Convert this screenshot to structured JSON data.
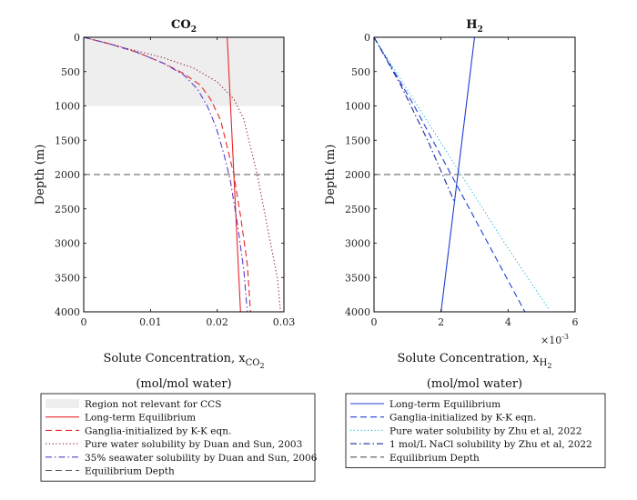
{
  "chart_data": [
    {
      "type": "line",
      "title": "CO",
      "title_sub": "2",
      "xlabel": "Solute Concentration, x",
      "xlabel_sub": "CO",
      "xlabel_subsub": "2",
      "units": "(mol/mol water)",
      "ylabel": "Depth (m)",
      "xlim": [
        0,
        0.03
      ],
      "ylim": [
        0,
        4000
      ],
      "xticks": [
        "0",
        "0.01",
        "0.02",
        "0.03"
      ],
      "xtick_values": [
        0,
        0.01,
        0.02,
        0.03
      ],
      "yticks": [
        "0",
        "500",
        "1000",
        "1500",
        "2000",
        "2500",
        "3000",
        "3500",
        "4000"
      ],
      "ytick_values": [
        0,
        500,
        1000,
        1500,
        2000,
        2500,
        3000,
        3500,
        4000
      ],
      "shaded_region": {
        "label": "Region not relevant for CCS",
        "y": [
          0,
          1000
        ],
        "color": "#eeeeee"
      },
      "equilibrium_depth": 2000,
      "series": [
        {
          "name": "Long-term Equilibrium",
          "color": "#e8262b",
          "dash": "solid",
          "x": [
            0.0215,
            0.0235
          ],
          "y": [
            0,
            4000
          ]
        },
        {
          "name": "Ganglia-initialized by K-K eqn.",
          "color": "#e8262b",
          "dash": "dashed",
          "x": [
            0,
            0.004,
            0.008,
            0.012,
            0.015,
            0.0175,
            0.019,
            0.0205,
            0.0215,
            0.0225,
            0.0235,
            0.0245,
            0.025
          ],
          "y": [
            0,
            100,
            220,
            380,
            530,
            700,
            900,
            1200,
            1600,
            2000,
            2600,
            3300,
            4000
          ]
        },
        {
          "name": "Pure water solubility by Duan and Sun, 2003",
          "color": "#8b1a2e",
          "dash": "dotted",
          "x": [
            0,
            0.006,
            0.012,
            0.0165,
            0.02,
            0.0225,
            0.024,
            0.025,
            0.026,
            0.027,
            0.028,
            0.029,
            0.0295
          ],
          "y": [
            0,
            150,
            300,
            450,
            650,
            900,
            1200,
            1600,
            2000,
            2500,
            3000,
            3500,
            4000
          ]
        },
        {
          "name": "35% seawater solubility by Duan and Sun, 2006",
          "color": "#5a3cc8",
          "dash": "dashdot",
          "x": [
            0,
            0.004,
            0.008,
            0.012,
            0.015,
            0.017,
            0.0185,
            0.0198,
            0.021,
            0.022,
            0.023,
            0.024,
            0.0245
          ],
          "y": [
            0,
            100,
            220,
            380,
            550,
            750,
            1000,
            1300,
            1700,
            2100,
            2700,
            3400,
            4000
          ]
        }
      ],
      "legend": [
        {
          "label": "Region not relevant for CCS",
          "kind": "patch",
          "color": "#eeeeee"
        },
        {
          "label": "Long-term Equilibrium",
          "kind": "line",
          "color": "#e8262b",
          "dash": "solid"
        },
        {
          "label": "Ganglia-initialized by K-K eqn.",
          "kind": "line",
          "color": "#e8262b",
          "dash": "dashed"
        },
        {
          "label": "Pure water solubility by Duan and Sun, 2003",
          "kind": "line",
          "color": "#8b1a2e",
          "dash": "dotted"
        },
        {
          "label": "35% seawater solubility by Duan and Sun, 2006",
          "kind": "line",
          "color": "#5a3cc8",
          "dash": "dashdot"
        },
        {
          "label": "Equilibrium Depth",
          "kind": "line",
          "color": "#555555",
          "dash": "dashed"
        }
      ]
    },
    {
      "type": "line",
      "title": "H",
      "title_sub": "2",
      "xlabel": "Solute Concentration, x",
      "xlabel_sub": "H",
      "xlabel_subsub": "2",
      "units": "(mol/mol water)",
      "ylabel": "Depth (m)",
      "xlim": [
        0,
        6
      ],
      "x_multiplier": "×10",
      "x_multiplier_exp": "-3",
      "ylim": [
        0,
        4000
      ],
      "xticks": [
        "0",
        "2",
        "4",
        "6"
      ],
      "xtick_values": [
        0,
        2,
        4,
        6
      ],
      "yticks": [
        "0",
        "500",
        "1000",
        "1500",
        "2000",
        "2500",
        "3000",
        "3500",
        "4000"
      ],
      "ytick_values": [
        0,
        500,
        1000,
        1500,
        2000,
        2500,
        3000,
        3500,
        4000
      ],
      "equilibrium_depth": 2000,
      "series": [
        {
          "name": "Long-term Equilibrium",
          "color": "#1f3fd6",
          "dash": "solid",
          "x": [
            3.0,
            2.0
          ],
          "y": [
            0,
            4000
          ]
        },
        {
          "name": "Ganglia-initialized by K-K eqn.",
          "color": "#1f3fd6",
          "dash": "dashed",
          "x": [
            0,
            1.2,
            2.3,
            3.4,
            4.5
          ],
          "y": [
            0,
            1000,
            2000,
            3000,
            4000
          ]
        },
        {
          "name": "Pure water solubility by Zhu et al, 2022",
          "color": "#2ab7e0",
          "dash": "dotted",
          "x": [
            0,
            1.3,
            2.6,
            3.9,
            5.2
          ],
          "y": [
            0,
            1000,
            2000,
            3000,
            3950
          ]
        },
        {
          "name": "1 mol/L NaCl solubility by Zhu et al, 2022",
          "color": "#1a2a9a",
          "dash": "dashdot",
          "x": [
            0,
            0.8,
            1.6,
            2.4
          ],
          "y": [
            0,
            700,
            1500,
            2400
          ]
        }
      ],
      "legend": [
        {
          "label": "Long-term Equilibrium",
          "kind": "line",
          "color": "#1f3fd6",
          "dash": "solid"
        },
        {
          "label": "Ganglia-initialized by K-K eqn.",
          "kind": "line",
          "color": "#1f3fd6",
          "dash": "dashed"
        },
        {
          "label": "Pure water solubility by Zhu et al, 2022",
          "kind": "line",
          "color": "#2ab7e0",
          "dash": "dotted"
        },
        {
          "label": " 1 mol/L NaCl solubility by Zhu et al, 2022",
          "kind": "line",
          "color": "#1a2a9a",
          "dash": "dashdot"
        },
        {
          "label": "Equilibrium Depth",
          "kind": "line",
          "color": "#555555",
          "dash": "dashed"
        }
      ]
    }
  ]
}
